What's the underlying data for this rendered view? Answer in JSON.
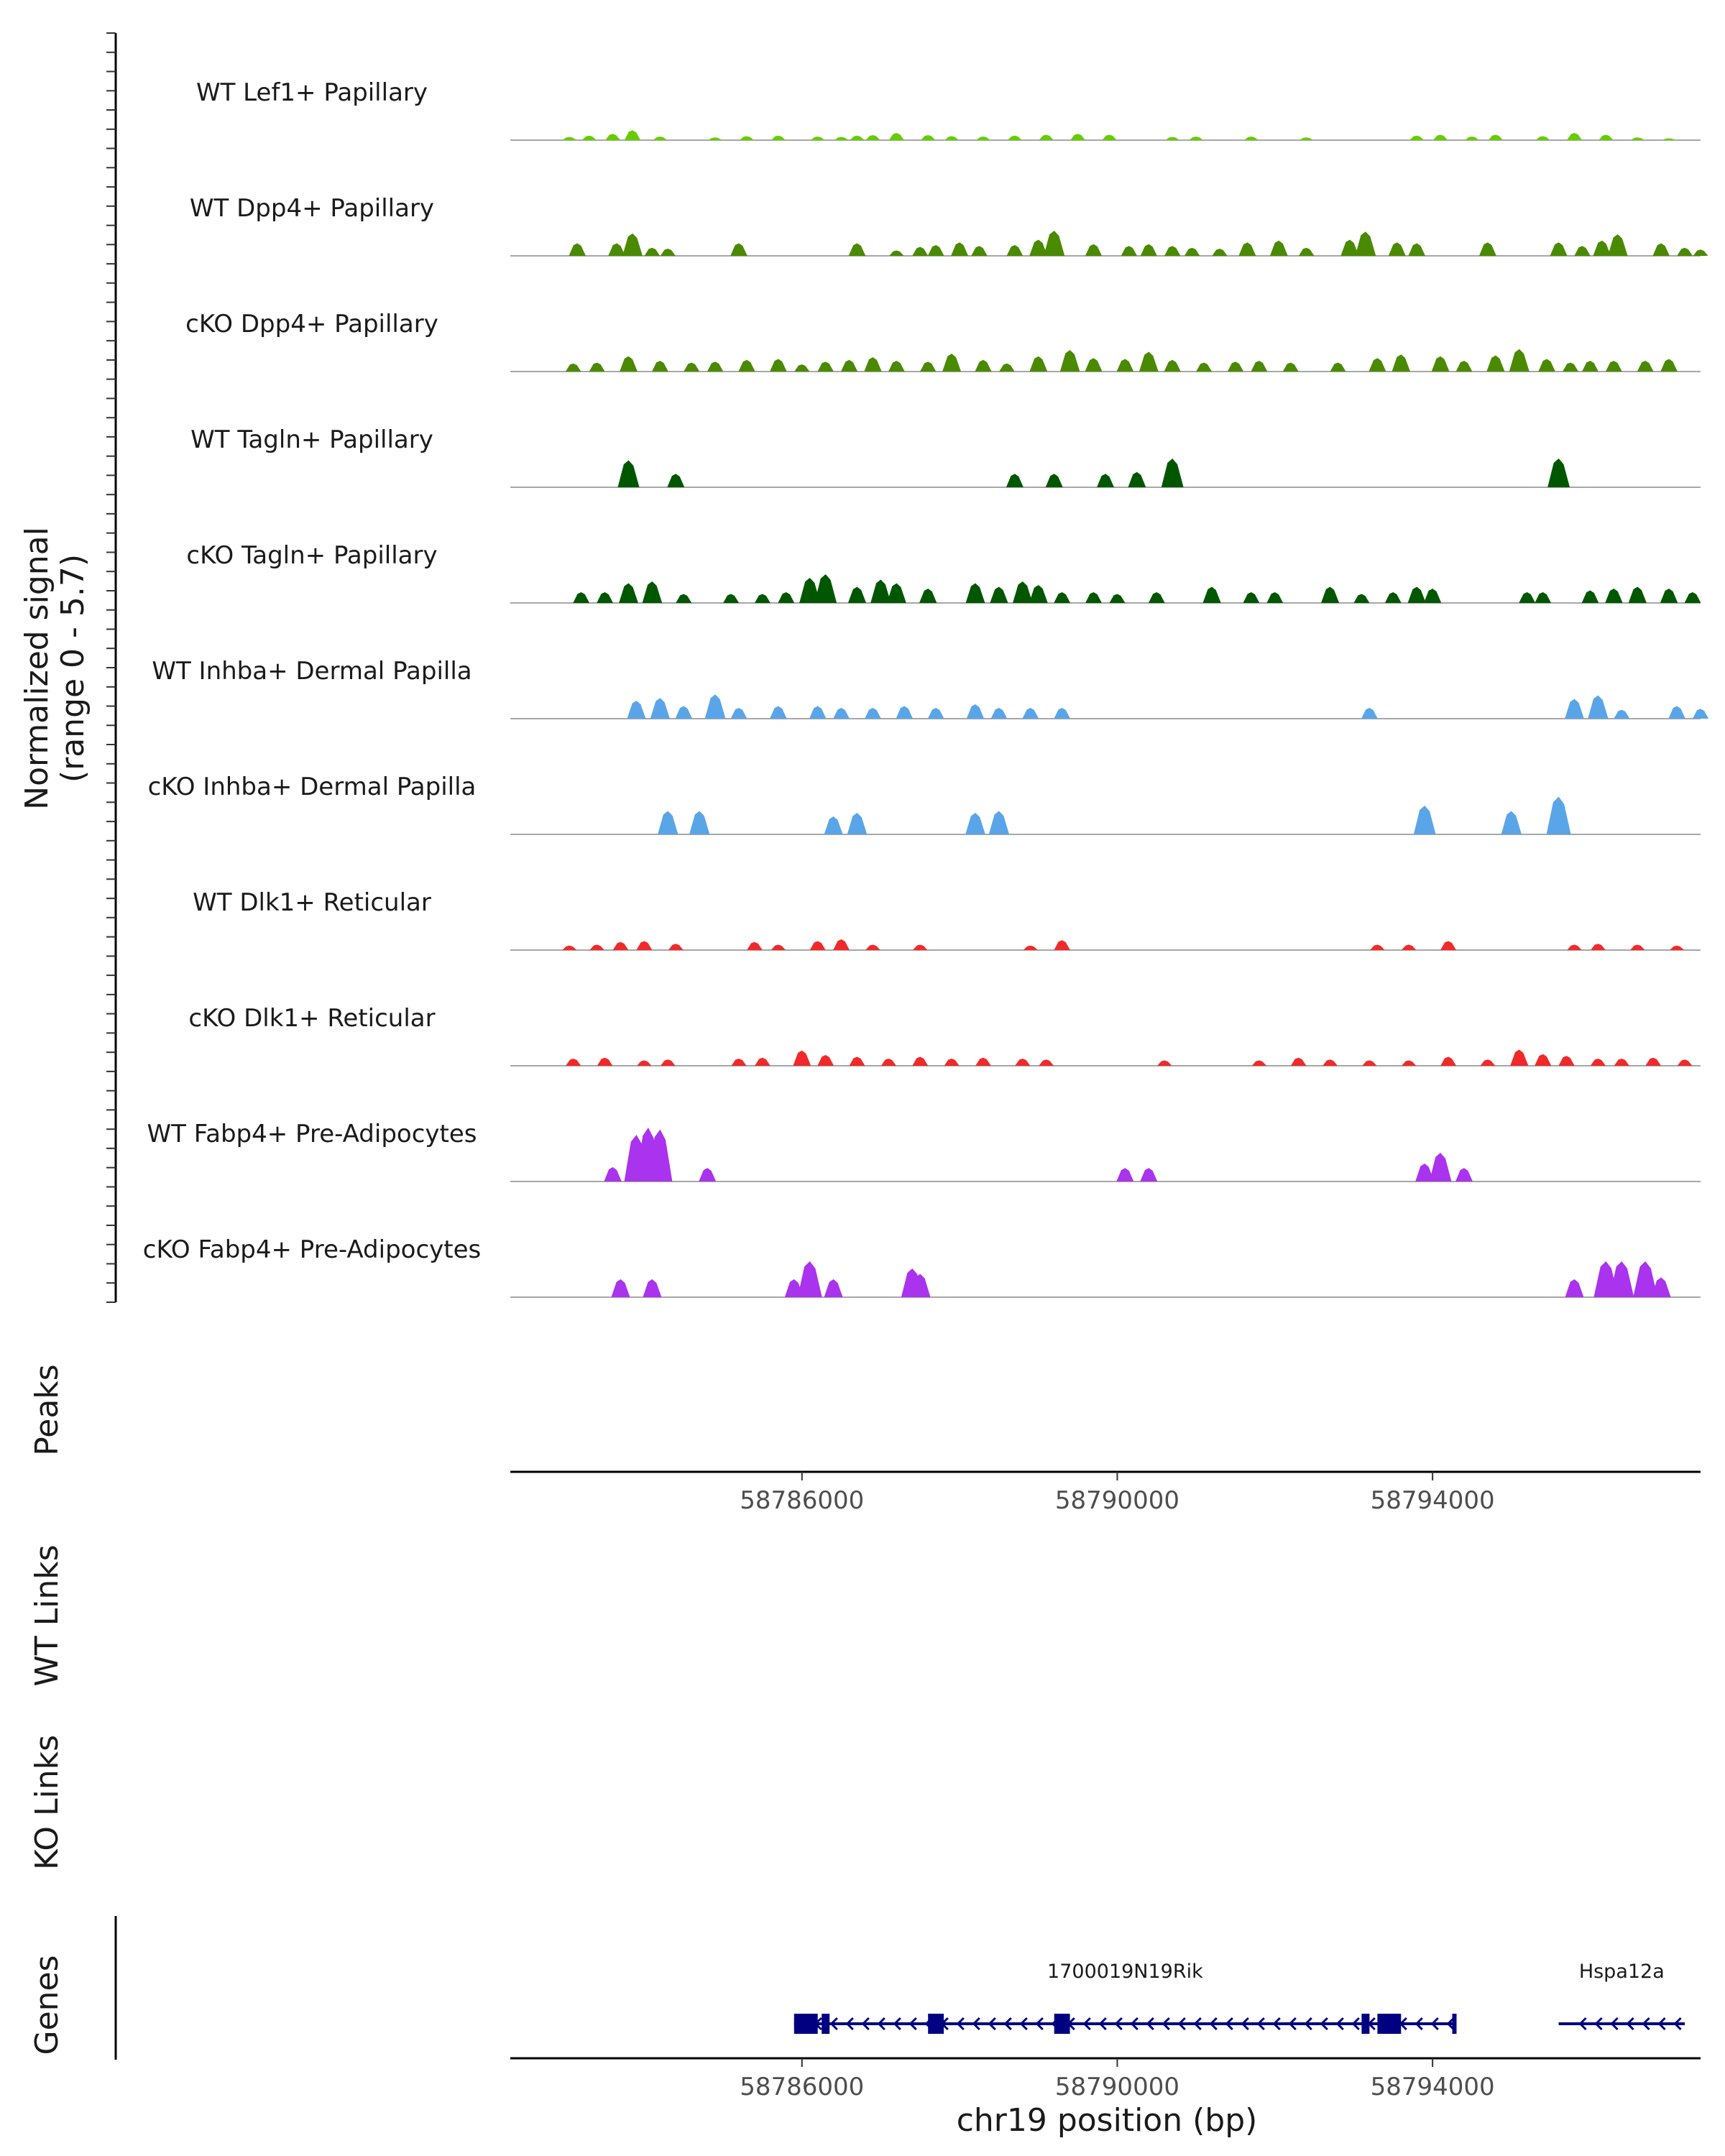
{
  "chart_data": {
    "type": "area",
    "title": "",
    "region": {
      "chromosome": "chr19",
      "start": 58782300,
      "end": 58797400
    },
    "xlabel": "chr19 position (bp)",
    "xticks": [
      58786000,
      58790000,
      58794000
    ],
    "signal_axis_label": [
      "Normalized signal",
      "(range 0 - 5.7)"
    ],
    "ylim": [
      0,
      5.7
    ],
    "panel_labels": {
      "peaks": "Peaks",
      "wt_links": "WT Links",
      "ko_links": "KO Links",
      "genes": "Genes"
    },
    "tracks": [
      {
        "name": "WT Lef1+ Papillary",
        "color": "#66cc00",
        "peaks": [
          [
            58783050,
            0.18
          ],
          [
            58783300,
            0.25
          ],
          [
            58783600,
            0.35
          ],
          [
            58783850,
            0.55
          ],
          [
            58784200,
            0.2
          ],
          [
            58784900,
            0.15
          ],
          [
            58785300,
            0.22
          ],
          [
            58785700,
            0.25
          ],
          [
            58786200,
            0.2
          ],
          [
            58786500,
            0.18
          ],
          [
            58786700,
            0.25
          ],
          [
            58786900,
            0.28
          ],
          [
            58787200,
            0.4
          ],
          [
            58787600,
            0.28
          ],
          [
            58787900,
            0.22
          ],
          [
            58788300,
            0.2
          ],
          [
            58788700,
            0.25
          ],
          [
            58789100,
            0.3
          ],
          [
            58789500,
            0.35
          ],
          [
            58789900,
            0.3
          ],
          [
            58790700,
            0.18
          ],
          [
            58791000,
            0.2
          ],
          [
            58791700,
            0.2
          ],
          [
            58792400,
            0.15
          ],
          [
            58793800,
            0.25
          ],
          [
            58794100,
            0.3
          ],
          [
            58794500,
            0.2
          ],
          [
            58794800,
            0.3
          ],
          [
            58795400,
            0.22
          ],
          [
            58795800,
            0.4
          ],
          [
            58796200,
            0.3
          ],
          [
            58796600,
            0.15
          ],
          [
            58797000,
            0.1
          ]
        ]
      },
      {
        "name": "WT Dpp4+ Papillary",
        "color": "#4a8a00",
        "peaks": [
          [
            58783150,
            0.7
          ],
          [
            58783650,
            0.7
          ],
          [
            58783850,
            1.25
          ],
          [
            58784100,
            0.45
          ],
          [
            58784300,
            0.4
          ],
          [
            58785200,
            0.7
          ],
          [
            58786700,
            0.7
          ],
          [
            58787200,
            0.3
          ],
          [
            58787500,
            0.5
          ],
          [
            58787700,
            0.6
          ],
          [
            58788000,
            0.75
          ],
          [
            58788250,
            0.55
          ],
          [
            58788700,
            0.6
          ],
          [
            58789000,
            0.9
          ],
          [
            58789200,
            1.4
          ],
          [
            58789700,
            0.65
          ],
          [
            58790150,
            0.55
          ],
          [
            58790400,
            0.65
          ],
          [
            58790700,
            0.55
          ],
          [
            58790950,
            0.45
          ],
          [
            58791300,
            0.4
          ],
          [
            58791650,
            0.75
          ],
          [
            58792050,
            0.85
          ],
          [
            58792400,
            0.45
          ],
          [
            58792950,
            0.9
          ],
          [
            58793150,
            1.35
          ],
          [
            58793550,
            0.75
          ],
          [
            58793800,
            0.7
          ],
          [
            58794700,
            0.75
          ],
          [
            58795600,
            0.75
          ],
          [
            58795900,
            0.55
          ],
          [
            58796150,
            0.85
          ],
          [
            58796350,
            1.2
          ],
          [
            58796900,
            0.7
          ],
          [
            58797200,
            0.45
          ],
          [
            58797400,
            0.35
          ]
        ]
      },
      {
        "name": "cKO Dpp4+ Papillary",
        "color": "#4a8a00",
        "peaks": [
          [
            58783100,
            0.45
          ],
          [
            58783400,
            0.5
          ],
          [
            58783800,
            0.85
          ],
          [
            58784200,
            0.6
          ],
          [
            58784600,
            0.5
          ],
          [
            58784900,
            0.55
          ],
          [
            58785300,
            0.65
          ],
          [
            58785700,
            0.7
          ],
          [
            58786000,
            0.4
          ],
          [
            58786300,
            0.55
          ],
          [
            58786600,
            0.65
          ],
          [
            58786900,
            0.8
          ],
          [
            58787200,
            0.6
          ],
          [
            58787600,
            0.55
          ],
          [
            58787900,
            1.0
          ],
          [
            58788300,
            0.65
          ],
          [
            58788600,
            0.45
          ],
          [
            58789000,
            0.85
          ],
          [
            58789400,
            1.2
          ],
          [
            58789700,
            0.75
          ],
          [
            58790100,
            0.7
          ],
          [
            58790400,
            1.1
          ],
          [
            58790700,
            0.65
          ],
          [
            58791100,
            0.5
          ],
          [
            58791500,
            0.55
          ],
          [
            58791800,
            0.6
          ],
          [
            58792200,
            0.5
          ],
          [
            58792800,
            0.5
          ],
          [
            58793300,
            0.75
          ],
          [
            58793600,
            0.95
          ],
          [
            58794100,
            0.85
          ],
          [
            58794400,
            0.6
          ],
          [
            58794800,
            0.9
          ],
          [
            58795100,
            1.25
          ],
          [
            58795450,
            0.7
          ],
          [
            58795750,
            0.5
          ],
          [
            58796000,
            0.6
          ],
          [
            58796300,
            0.6
          ],
          [
            58796700,
            0.6
          ],
          [
            58797000,
            0.7
          ]
        ]
      },
      {
        "name": "WT Tagln+ Papillary",
        "color": "#005700",
        "peaks": [
          [
            58783800,
            1.5
          ],
          [
            58784400,
            0.75
          ],
          [
            58788700,
            0.75
          ],
          [
            58789200,
            0.75
          ],
          [
            58789850,
            0.75
          ],
          [
            58790250,
            0.85
          ],
          [
            58790700,
            1.6
          ],
          [
            58795600,
            1.6
          ]
        ]
      },
      {
        "name": "cKO Tagln+ Papillary",
        "color": "#005700",
        "peaks": [
          [
            58783200,
            0.6
          ],
          [
            58783500,
            0.6
          ],
          [
            58783800,
            1.1
          ],
          [
            58784100,
            1.2
          ],
          [
            58784500,
            0.5
          ],
          [
            58785100,
            0.5
          ],
          [
            58785500,
            0.5
          ],
          [
            58785800,
            0.6
          ],
          [
            58786100,
            1.4
          ],
          [
            58786300,
            1.6
          ],
          [
            58786700,
            0.9
          ],
          [
            58787000,
            1.3
          ],
          [
            58787200,
            1.1
          ],
          [
            58787600,
            0.8
          ],
          [
            58788200,
            1.1
          ],
          [
            58788500,
            0.9
          ],
          [
            58788800,
            1.2
          ],
          [
            58789000,
            1.0
          ],
          [
            58789300,
            0.6
          ],
          [
            58789700,
            0.6
          ],
          [
            58790000,
            0.5
          ],
          [
            58790500,
            0.6
          ],
          [
            58791200,
            0.9
          ],
          [
            58791700,
            0.6
          ],
          [
            58792000,
            0.6
          ],
          [
            58792700,
            0.9
          ],
          [
            58793100,
            0.5
          ],
          [
            58793500,
            0.6
          ],
          [
            58793800,
            0.9
          ],
          [
            58794000,
            0.8
          ],
          [
            58795200,
            0.6
          ],
          [
            58795400,
            0.6
          ],
          [
            58796000,
            0.7
          ],
          [
            58796300,
            0.8
          ],
          [
            58796600,
            0.9
          ],
          [
            58797000,
            0.8
          ],
          [
            58797300,
            0.6
          ]
        ]
      },
      {
        "name": "WT Inhba+ Dermal Papilla",
        "color": "#5aa5e8",
        "peaks": [
          [
            58783900,
            1.0
          ],
          [
            58784200,
            1.15
          ],
          [
            58784500,
            0.7
          ],
          [
            58784900,
            1.35
          ],
          [
            58785200,
            0.6
          ],
          [
            58785700,
            0.7
          ],
          [
            58786200,
            0.7
          ],
          [
            58786500,
            0.6
          ],
          [
            58786900,
            0.6
          ],
          [
            58787300,
            0.7
          ],
          [
            58787700,
            0.6
          ],
          [
            58788200,
            0.8
          ],
          [
            58788500,
            0.6
          ],
          [
            58788900,
            0.6
          ],
          [
            58789300,
            0.6
          ],
          [
            58793200,
            0.6
          ],
          [
            58795800,
            1.1
          ],
          [
            58796100,
            1.3
          ],
          [
            58796400,
            0.5
          ],
          [
            58797100,
            0.7
          ],
          [
            58797400,
            0.55
          ]
        ]
      },
      {
        "name": "cKO Inhba+ Dermal Papilla",
        "color": "#5aa5e8",
        "peaks": [
          [
            58784300,
            1.3
          ],
          [
            58784700,
            1.3
          ],
          [
            58786400,
            1.0
          ],
          [
            58786700,
            1.2
          ],
          [
            58788200,
            1.2
          ],
          [
            58788500,
            1.3
          ],
          [
            58793900,
            1.6
          ],
          [
            58795000,
            1.3
          ],
          [
            58795600,
            2.1
          ]
        ]
      },
      {
        "name": "WT Dlk1+ Reticular",
        "color": "#f02a2a",
        "peaks": [
          [
            58783050,
            0.25
          ],
          [
            58783400,
            0.3
          ],
          [
            58783700,
            0.45
          ],
          [
            58784000,
            0.5
          ],
          [
            58784400,
            0.35
          ],
          [
            58785400,
            0.45
          ],
          [
            58785700,
            0.3
          ],
          [
            58786200,
            0.5
          ],
          [
            58786500,
            0.6
          ],
          [
            58786900,
            0.3
          ],
          [
            58787500,
            0.3
          ],
          [
            58788900,
            0.25
          ],
          [
            58789300,
            0.55
          ],
          [
            58793300,
            0.3
          ],
          [
            58793700,
            0.3
          ],
          [
            58794200,
            0.5
          ],
          [
            58795800,
            0.3
          ],
          [
            58796100,
            0.35
          ],
          [
            58796600,
            0.3
          ],
          [
            58797100,
            0.25
          ]
        ]
      },
      {
        "name": "cKO Dlk1+ Reticular",
        "color": "#f02a2a",
        "peaks": [
          [
            58783100,
            0.4
          ],
          [
            58783500,
            0.45
          ],
          [
            58784000,
            0.3
          ],
          [
            58784300,
            0.35
          ],
          [
            58785200,
            0.4
          ],
          [
            58785500,
            0.45
          ],
          [
            58786000,
            0.85
          ],
          [
            58786300,
            0.6
          ],
          [
            58786700,
            0.5
          ],
          [
            58787100,
            0.4
          ],
          [
            58787500,
            0.5
          ],
          [
            58787900,
            0.4
          ],
          [
            58788300,
            0.45
          ],
          [
            58788800,
            0.4
          ],
          [
            58789100,
            0.35
          ],
          [
            58790600,
            0.3
          ],
          [
            58791800,
            0.3
          ],
          [
            58792300,
            0.45
          ],
          [
            58792700,
            0.35
          ],
          [
            58793200,
            0.3
          ],
          [
            58793700,
            0.3
          ],
          [
            58794200,
            0.5
          ],
          [
            58794700,
            0.35
          ],
          [
            58795100,
            0.9
          ],
          [
            58795400,
            0.65
          ],
          [
            58795700,
            0.55
          ],
          [
            58796100,
            0.4
          ],
          [
            58796400,
            0.4
          ],
          [
            58796800,
            0.45
          ],
          [
            58797200,
            0.35
          ]
        ]
      },
      {
        "name": "WT Fabp4+ Pre-Adipocytes",
        "color": "#aa33ee",
        "peaks": [
          [
            58783600,
            0.8
          ],
          [
            58783900,
            2.6
          ],
          [
            58784050,
            3.0
          ],
          [
            58784200,
            2.9
          ],
          [
            58784800,
            0.75
          ],
          [
            58790100,
            0.75
          ],
          [
            58790400,
            0.75
          ],
          [
            58793900,
            1.0
          ],
          [
            58794100,
            1.6
          ],
          [
            58794400,
            0.75
          ]
        ]
      },
      {
        "name": "cKO Fabp4+ Pre-Adipocytes",
        "color": "#aa33ee",
        "peaks": [
          [
            58783700,
            1.0
          ],
          [
            58784100,
            1.0
          ],
          [
            58785900,
            1.0
          ],
          [
            58786100,
            2.0
          ],
          [
            58786400,
            1.0
          ],
          [
            58787400,
            1.6
          ],
          [
            58787500,
            1.3
          ],
          [
            58795800,
            1.0
          ],
          [
            58796200,
            2.0
          ],
          [
            58796400,
            2.0
          ],
          [
            58796700,
            2.0
          ],
          [
            58796900,
            1.1
          ]
        ]
      }
    ],
    "genes": [
      {
        "name": "1700019N19Rik",
        "strand": "-",
        "start": 58785900,
        "end": 58794300,
        "exons": [
          [
            58785900,
            58786200
          ],
          [
            58786250,
            58786350
          ],
          [
            58787600,
            58787800
          ],
          [
            58789200,
            58789400
          ],
          [
            58793100,
            58793200
          ],
          [
            58793300,
            58793600
          ],
          [
            58794250,
            58794300
          ]
        ]
      },
      {
        "name": "Hspa12a",
        "strand": "-",
        "start": 58795600,
        "end": 58797200,
        "exons": []
      }
    ]
  }
}
